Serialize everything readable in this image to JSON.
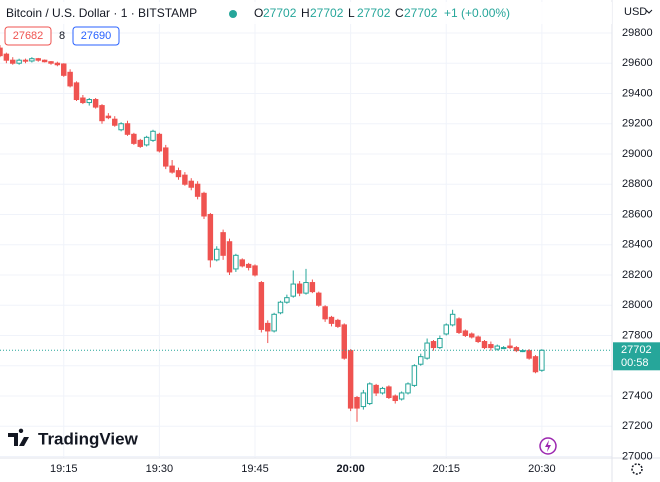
{
  "header": {
    "symbol": "Bitcoin / U.S. Dollar · 1 · BITSTAMP",
    "ohlc": [
      {
        "label": "O",
        "value": "27702"
      },
      {
        "label": "H",
        "value": "27702"
      },
      {
        "label": "L",
        "value": "27702"
      },
      {
        "label": "C",
        "value": "27702"
      }
    ],
    "change": "+1 (+0.00%)",
    "bid": "27682",
    "spread": "8",
    "ask": "27690",
    "currency": "USD"
  },
  "logo": "TradingView",
  "chart_data": {
    "type": "candlestick",
    "x": [
      "19:05",
      "19:06",
      "19:07",
      "19:08",
      "19:09",
      "19:10",
      "19:11",
      "19:12",
      "19:13",
      "19:14",
      "19:15",
      "19:16",
      "19:17",
      "19:18",
      "19:19",
      "19:20",
      "19:21",
      "19:22",
      "19:23",
      "19:24",
      "19:25",
      "19:26",
      "19:27",
      "19:28",
      "19:29",
      "19:30",
      "19:31",
      "19:32",
      "19:33",
      "19:34",
      "19:35",
      "19:36",
      "19:37",
      "19:38",
      "19:39",
      "19:40",
      "19:41",
      "19:42",
      "19:43",
      "19:44",
      "19:45",
      "19:46",
      "19:47",
      "19:48",
      "19:49",
      "19:50",
      "19:51",
      "19:52",
      "19:53",
      "19:54",
      "19:55",
      "19:56",
      "19:57",
      "19:58",
      "19:59",
      "20:00",
      "20:01",
      "20:02",
      "20:03",
      "20:04",
      "20:05",
      "20:06",
      "20:07",
      "20:08",
      "20:09",
      "20:10",
      "20:11",
      "20:12",
      "20:13",
      "20:14",
      "20:15",
      "20:16",
      "20:17",
      "20:18",
      "20:19",
      "20:20",
      "20:21",
      "20:22",
      "20:23",
      "20:24",
      "20:25",
      "20:26",
      "20:27",
      "20:28",
      "20:29",
      "20:30"
    ],
    "open": [
      29700,
      29660,
      29620,
      29600,
      29620,
      29615,
      29630,
      29620,
      29610,
      29600,
      29595,
      29540,
      29470,
      29370,
      29340,
      29360,
      29320,
      29250,
      29230,
      29160,
      29200,
      29130,
      29090,
      29060,
      29090,
      29130,
      29040,
      28920,
      28890,
      28860,
      28820,
      28800,
      28740,
      28600,
      28300,
      28480,
      28420,
      28240,
      28300,
      28270,
      28260,
      28150,
      27880,
      27830,
      27950,
      28020,
      28060,
      28140,
      28080,
      28150,
      28080,
      27990,
      27920,
      27900,
      27870,
      27700,
      27390,
      27330,
      27350,
      27470,
      27420,
      27460,
      27400,
      27380,
      27420,
      27470,
      27610,
      27650,
      27760,
      27720,
      27810,
      27870,
      27910,
      27830,
      27810,
      27790,
      27760,
      27740,
      27710,
      27720,
      27730,
      27720,
      27700,
      27700,
      27660,
      27570
    ],
    "high": [
      29720,
      29670,
      29640,
      29630,
      29630,
      29640,
      29635,
      29625,
      29615,
      29610,
      29600,
      29560,
      29480,
      29390,
      29370,
      29370,
      29330,
      29270,
      29250,
      29210,
      29220,
      29140,
      29100,
      29120,
      29160,
      29140,
      29060,
      28960,
      28910,
      28880,
      28840,
      28820,
      28750,
      28610,
      28390,
      28500,
      28440,
      28340,
      28310,
      28280,
      28270,
      28160,
      27900,
      27950,
      28030,
      28070,
      28230,
      28160,
      28240,
      28170,
      28090,
      28000,
      27930,
      27910,
      27880,
      27710,
      27400,
      27440,
      27490,
      27480,
      27460,
      27470,
      27410,
      27430,
      27490,
      27610,
      27680,
      27780,
      27770,
      27800,
      27880,
      27970,
      27920,
      27840,
      27820,
      27800,
      27770,
      27760,
      27740,
      27730,
      27780,
      27730,
      27710,
      27710,
      27670,
      27710
    ],
    "low": [
      29640,
      29600,
      29590,
      29590,
      29600,
      29605,
      29610,
      29605,
      29590,
      29580,
      29510,
      29440,
      29350,
      29330,
      29320,
      29300,
      29200,
      29230,
      29180,
      29150,
      29120,
      29060,
      29040,
      29050,
      29080,
      29010,
      28900,
      28870,
      28830,
      28790,
      28760,
      28700,
      28570,
      28250,
      28290,
      28300,
      28200,
      28220,
      28250,
      28230,
      28190,
      27820,
      27750,
      27820,
      27940,
      28010,
      28050,
      28060,
      28070,
      28080,
      27990,
      27890,
      27860,
      27850,
      27640,
      27300,
      27230,
      27310,
      27340,
      27400,
      27410,
      27380,
      27350,
      27370,
      27410,
      27460,
      27600,
      27640,
      27700,
      27710,
      27800,
      27860,
      27810,
      27790,
      27780,
      27750,
      27710,
      27700,
      27700,
      27710,
      27710,
      27690,
      27690,
      27640,
      27550,
      27560
    ],
    "close": [
      29650,
      29620,
      29600,
      29620,
      29615,
      29630,
      29620,
      29610,
      29600,
      29590,
      29520,
      29450,
      29360,
      29340,
      29360,
      29310,
      29220,
      29240,
      29190,
      29200,
      29130,
      29070,
      29050,
      29110,
      29150,
      29020,
      28920,
      28880,
      28850,
      28800,
      28780,
      28720,
      28590,
      28300,
      28370,
      28330,
      28220,
      28330,
      28260,
      28250,
      28200,
      27840,
      27830,
      27940,
      28020,
      28050,
      28140,
      28080,
      28150,
      28090,
      28000,
      27910,
      27880,
      27860,
      27650,
      27320,
      27320,
      27420,
      27480,
      27420,
      27450,
      27390,
      27370,
      27420,
      27480,
      27600,
      27660,
      27750,
      27720,
      27780,
      27870,
      27940,
      27820,
      27800,
      27790,
      27760,
      27720,
      27720,
      27730,
      27720,
      27720,
      27700,
      27700,
      27650,
      27560,
      27702
    ],
    "up_color": "#26a69a",
    "down_color": "#ef5350",
    "ylim": [
      26990,
      30018
    ],
    "yticks": [
      27000,
      27200,
      27400,
      27600,
      27800,
      28000,
      28200,
      28400,
      28600,
      28800,
      29000,
      29200,
      29400,
      29600,
      29800
    ],
    "xlim": [
      "19:05",
      "20:41"
    ],
    "xticks": [
      "19:15",
      "19:30",
      "19:45",
      "20:00",
      "20:15",
      "20:30"
    ],
    "grid": true,
    "last_price": {
      "value": 27702,
      "countdown": "00:58"
    }
  }
}
